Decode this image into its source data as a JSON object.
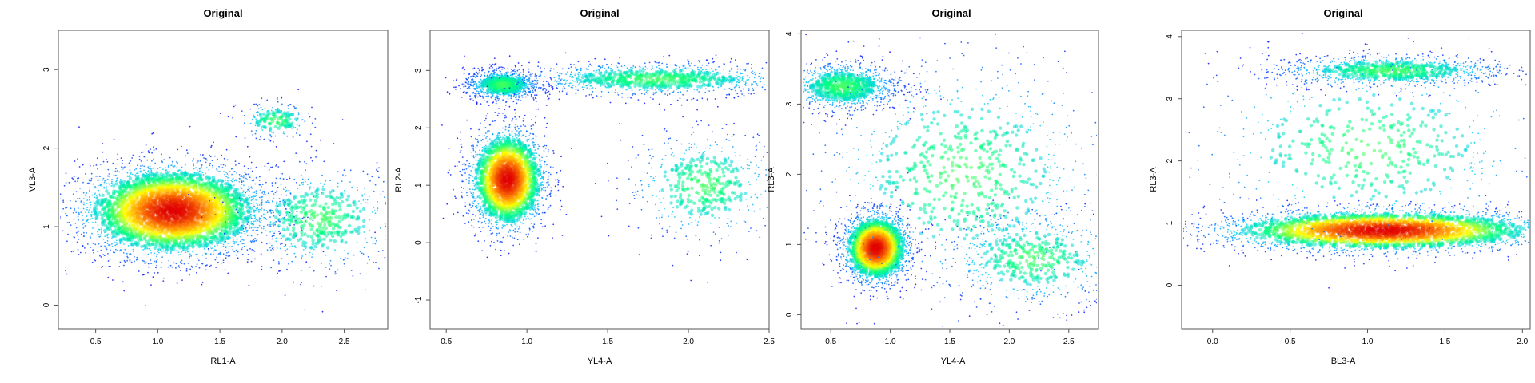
{
  "chart_data": [
    {
      "type": "scatter",
      "title": "Original",
      "xlabel": "RL1-A",
      "ylabel": "VL3-A",
      "xlim": [
        0.2,
        2.85
      ],
      "ylim": [
        -0.3,
        3.5
      ],
      "xticks": [
        "0.5",
        "1.0",
        "1.5",
        "2.0",
        "2.5"
      ],
      "yticks": [
        "0",
        "1",
        "2",
        "3"
      ],
      "density_clusters": [
        {
          "center": [
            1.12,
            1.2
          ],
          "spread": [
            0.38,
            0.3
          ],
          "weight": 0.8
        },
        {
          "center": [
            2.3,
            1.1
          ],
          "spread": [
            0.35,
            0.35
          ],
          "weight": 0.12
        },
        {
          "center": [
            1.95,
            2.35
          ],
          "spread": [
            0.15,
            0.12
          ],
          "weight": 0.04
        }
      ],
      "color_scale": [
        "#0000ff",
        "#00c8ff",
        "#00ff80",
        "#ffff00",
        "#ff8000",
        "#e00000"
      ],
      "grid": false,
      "legend": "none"
    },
    {
      "type": "scatter",
      "title": "Original",
      "xlabel": "YL4-A",
      "ylabel": "RL2-A",
      "xlim": [
        0.4,
        2.5
      ],
      "ylim": [
        -1.5,
        3.7
      ],
      "xticks": [
        "0.5",
        "1.0",
        "1.5",
        "2.0",
        "2.5"
      ],
      "yticks": [
        "-1",
        "0",
        "1",
        "2",
        "3"
      ],
      "density_clusters": [
        {
          "center": [
            0.88,
            1.1
          ],
          "spread": [
            0.12,
            0.45
          ],
          "weight": 0.45
        },
        {
          "center": [
            0.85,
            2.75
          ],
          "spread": [
            0.12,
            0.14
          ],
          "weight": 0.18
        },
        {
          "center": [
            1.8,
            2.85
          ],
          "spread": [
            0.45,
            0.15
          ],
          "weight": 0.2
        },
        {
          "center": [
            2.1,
            1.0
          ],
          "spread": [
            0.25,
            0.5
          ],
          "weight": 0.1
        }
      ],
      "color_scale": [
        "#0000ff",
        "#00c8ff",
        "#00ff80",
        "#ffff00",
        "#ff8000",
        "#e00000"
      ],
      "grid": false,
      "legend": "none"
    },
    {
      "type": "scatter",
      "title": "Original",
      "xlabel": "YL4-A",
      "ylabel": "RL3-A",
      "xlim": [
        0.25,
        2.75
      ],
      "ylim": [
        -0.2,
        4.05
      ],
      "xticks": [
        "0.5",
        "1.0",
        "1.5",
        "2.0",
        "2.5"
      ],
      "yticks": [
        "0",
        "1",
        "2",
        "3",
        "4"
      ],
      "density_clusters": [
        {
          "center": [
            0.88,
            0.95
          ],
          "spread": [
            0.14,
            0.25
          ],
          "weight": 0.4
        },
        {
          "center": [
            0.6,
            3.25
          ],
          "spread": [
            0.25,
            0.18
          ],
          "weight": 0.2
        },
        {
          "center": [
            1.6,
            2.0
          ],
          "spread": [
            0.65,
            0.9
          ],
          "weight": 0.18
        },
        {
          "center": [
            2.2,
            0.8
          ],
          "spread": [
            0.4,
            0.35
          ],
          "weight": 0.12
        }
      ],
      "color_scale": [
        "#0000ff",
        "#00c8ff",
        "#00ff80",
        "#ffff00",
        "#ff8000",
        "#e00000"
      ],
      "grid": false,
      "legend": "none"
    },
    {
      "type": "scatter",
      "title": "Original",
      "xlabel": "BL3-A",
      "ylabel": "RL3-A",
      "xlim": [
        -0.2,
        2.05
      ],
      "ylim": [
        -0.7,
        4.1
      ],
      "xticks": [
        "0.0",
        "0.5",
        "1.0",
        "1.5",
        "2.0"
      ],
      "yticks": [
        "0",
        "1",
        "2",
        "3",
        "4"
      ],
      "density_clusters": [
        {
          "center": [
            1.1,
            0.88
          ],
          "spread": [
            0.55,
            0.17
          ],
          "weight": 0.6
        },
        {
          "center": [
            1.15,
            3.45
          ],
          "spread": [
            0.4,
            0.13
          ],
          "weight": 0.18
        },
        {
          "center": [
            1.0,
            2.2
          ],
          "spread": [
            0.6,
            0.8
          ],
          "weight": 0.12
        }
      ],
      "color_scale": [
        "#0000ff",
        "#00c8ff",
        "#00ff80",
        "#ffff00",
        "#ff8000",
        "#e00000"
      ],
      "grid": false,
      "legend": "none"
    }
  ]
}
